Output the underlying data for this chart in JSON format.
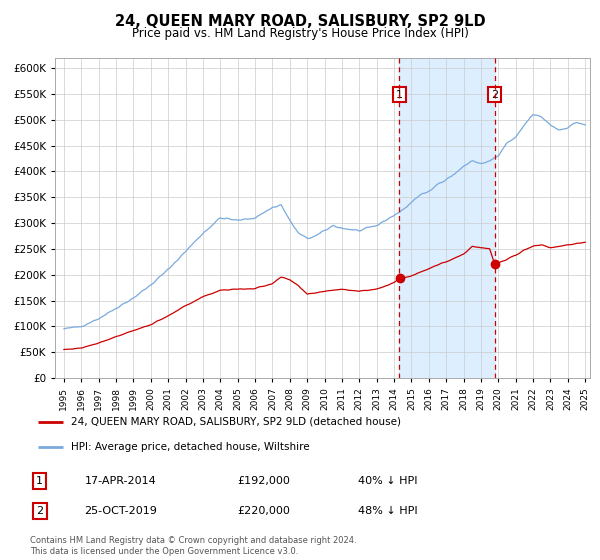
{
  "title": "24, QUEEN MARY ROAD, SALISBURY, SP2 9LD",
  "subtitle": "Price paid vs. HM Land Registry's House Price Index (HPI)",
  "title_fontsize": 10.5,
  "subtitle_fontsize": 8.5,
  "legend_line1": "24, QUEEN MARY ROAD, SALISBURY, SP2 9LD (detached house)",
  "legend_line2": "HPI: Average price, detached house, Wiltshire",
  "transaction1_date": "17-APR-2014",
  "transaction1_price": 192000,
  "transaction1_label": "40% ↓ HPI",
  "transaction2_date": "25-OCT-2019",
  "transaction2_price": 220000,
  "transaction2_label": "48% ↓ HPI",
  "footnote": "Contains HM Land Registry data © Crown copyright and database right 2024.\nThis data is licensed under the Open Government Licence v3.0.",
  "hpi_color": "#7aaadd",
  "price_color": "#cc0000",
  "vline_color": "#cc0000",
  "highlight_color": "#ddeeff",
  "ylim": [
    0,
    620000
  ],
  "yticks": [
    0,
    50000,
    100000,
    150000,
    200000,
    250000,
    300000,
    350000,
    400000,
    450000,
    500000,
    550000,
    600000
  ],
  "start_year": 1995,
  "end_year": 2025,
  "transaction1_x": 2014.3,
  "transaction2_x": 2019.8,
  "hpi_waypoints_x": [
    1995,
    1996,
    1997,
    1998,
    1999,
    2000,
    2001,
    2002,
    2003,
    2004,
    2005,
    2006,
    2007,
    2007.5,
    2008,
    2008.5,
    2009,
    2009.5,
    2010,
    2010.5,
    2011,
    2012,
    2013,
    2013.5,
    2014,
    2014.5,
    2015,
    2015.5,
    2016,
    2016.5,
    2017,
    2017.5,
    2018,
    2018.5,
    2019,
    2019.5,
    2020,
    2020.5,
    2021,
    2021.5,
    2022,
    2022.5,
    2023,
    2023.5,
    2024,
    2024.5,
    2025
  ],
  "hpi_waypoints_y": [
    95000,
    100000,
    115000,
    135000,
    155000,
    180000,
    210000,
    245000,
    280000,
    310000,
    305000,
    310000,
    330000,
    335000,
    305000,
    280000,
    270000,
    275000,
    285000,
    295000,
    290000,
    285000,
    295000,
    305000,
    315000,
    325000,
    340000,
    355000,
    360000,
    375000,
    385000,
    395000,
    410000,
    420000,
    415000,
    420000,
    430000,
    455000,
    465000,
    490000,
    510000,
    505000,
    490000,
    480000,
    485000,
    495000,
    490000
  ],
  "price_waypoints_x": [
    1995,
    1996,
    1997,
    1998,
    1999,
    2000,
    2001,
    2002,
    2003,
    2004,
    2005,
    2006,
    2007,
    2007.5,
    2008,
    2008.5,
    2009,
    2010,
    2011,
    2012,
    2013,
    2013.5,
    2014,
    2014.3,
    2015,
    2016,
    2017,
    2018,
    2018.5,
    2019,
    2019.5,
    2019.8,
    2020,
    2020.5,
    2021,
    2021.5,
    2022,
    2022.5,
    2023,
    2023.5,
    2024,
    2024.5,
    2025
  ],
  "price_waypoints_y": [
    55000,
    58000,
    68000,
    80000,
    92000,
    103000,
    120000,
    140000,
    157000,
    170000,
    172000,
    173000,
    183000,
    195000,
    190000,
    178000,
    162000,
    168000,
    172000,
    168000,
    172000,
    178000,
    185000,
    192000,
    198000,
    212000,
    225000,
    240000,
    255000,
    252000,
    250000,
    220000,
    222000,
    230000,
    238000,
    248000,
    255000,
    258000,
    252000,
    255000,
    258000,
    260000,
    262000
  ]
}
